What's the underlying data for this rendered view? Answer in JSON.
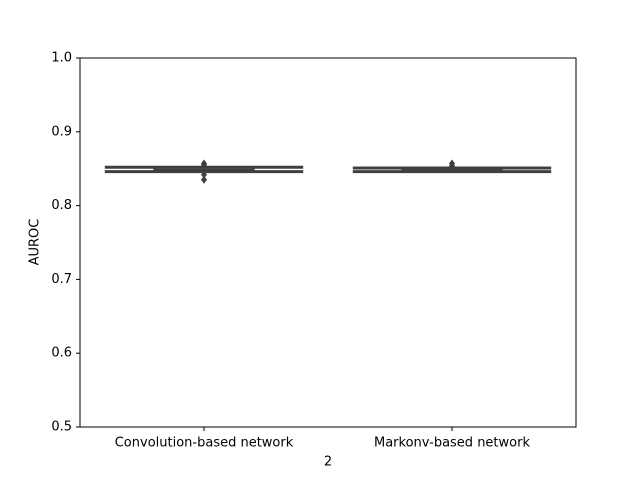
{
  "chart_data": {
    "type": "box",
    "xlabel": "2",
    "ylabel": "AUROC",
    "categories": [
      "Convolution-based network",
      "Markonv-based network"
    ],
    "color": "#4d4d4d",
    "line_color": "#3f3f3f",
    "boxes": [
      {
        "whislo": 0.846,
        "q1": 0.846,
        "median": 0.848,
        "q3": 0.852,
        "whishi": 0.852,
        "outliers": [
          0.857,
          0.855,
          0.842,
          0.835
        ]
      },
      {
        "whislo": 0.846,
        "q1": 0.846,
        "median": 0.849,
        "q3": 0.851,
        "whishi": 0.851,
        "outliers": [
          0.857,
          0.854
        ]
      }
    ],
    "ylim": [
      0.5,
      1.0
    ],
    "yticks": [
      0.5,
      0.6,
      0.7,
      0.8,
      0.9,
      {
        "value": 1.0,
        "label": "1.0"
      }
    ],
    "grid": false
  }
}
